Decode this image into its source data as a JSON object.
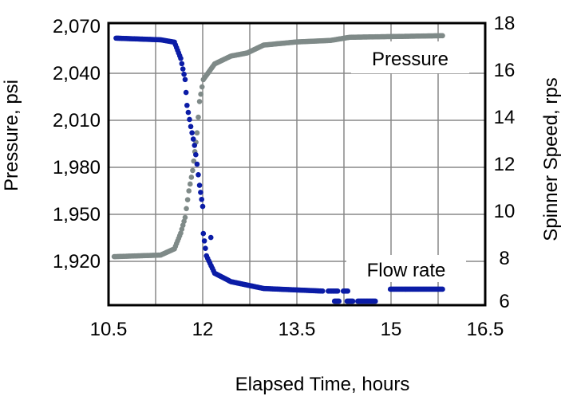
{
  "chart_data": {
    "type": "scatter",
    "title": "",
    "xlabel": "Elapsed Time, hours",
    "ylabel_left": "Pressure, psi",
    "ylabel_right": "Spinner Speed, rps",
    "xlim": [
      10.5,
      16.5
    ],
    "xticks": [
      10.5,
      12,
      13.5,
      15,
      16.5
    ],
    "xtick_labels": [
      "10.5",
      "12",
      "13.5",
      "15",
      "16.5"
    ],
    "ylim_left": [
      1892,
      2072
    ],
    "yticks_left": [
      1920,
      1950,
      1980,
      2010,
      2040,
      2070
    ],
    "ytick_labels_left": [
      "1,920",
      "1,950",
      "1,980",
      "2,010",
      "2,040",
      "2,070"
    ],
    "ylim_right": [
      6,
      18
    ],
    "yticks_right": [
      6,
      8,
      10,
      12,
      14,
      16,
      18
    ],
    "ytick_labels_right": [
      "6",
      "8",
      "10",
      "12",
      "14",
      "16",
      "18"
    ],
    "grid": true,
    "series": [
      {
        "name": "Pressure",
        "axis": "left",
        "color": "#7f8a88",
        "segments": [
          [
            [
              10.59,
              1923
            ],
            [
              11.33,
              1924
            ],
            [
              11.55,
              1928
            ],
            [
              11.65,
              1938
            ],
            [
              11.72,
              1948
            ],
            [
              11.78,
              1965
            ],
            [
              11.84,
              1978
            ],
            [
              11.91,
              2002
            ],
            [
              11.95,
              2022
            ],
            [
              12.01,
              2036
            ],
            [
              12.19,
              2046
            ],
            [
              12.45,
              2051
            ],
            [
              12.71,
              2053
            ],
            [
              12.97,
              2058
            ],
            [
              13.49,
              2060
            ],
            [
              14.04,
              2061
            ],
            [
              14.34,
              2063
            ],
            [
              15.82,
              2064
            ]
          ]
        ]
      },
      {
        "name": "Flow rate",
        "axis": "right",
        "color": "#0b1ca6",
        "segments": [
          [
            [
              10.62,
              17.36
            ],
            [
              11.33,
              17.29
            ],
            [
              11.55,
              17.19
            ],
            [
              11.65,
              16.5
            ],
            [
              11.72,
              15.6
            ],
            [
              11.75,
              14.5
            ],
            [
              11.81,
              13.6
            ],
            [
              11.87,
              12.8
            ],
            [
              11.91,
              12.0
            ],
            [
              11.95,
              11.1
            ],
            [
              12.0,
              10.2
            ],
            [
              12.01,
              9.05
            ],
            [
              12.06,
              8.1
            ],
            [
              12.19,
              7.36
            ],
            [
              12.45,
              7.0
            ],
            [
              12.97,
              6.71
            ],
            [
              13.91,
              6.6
            ]
          ],
          [
            [
              14.0,
              6.6
            ],
            [
              14.15,
              6.6
            ]
          ],
          [
            [
              14.24,
              6.6
            ],
            [
              14.31,
              6.6
            ]
          ],
          [
            [
              14.1,
              6.17
            ],
            [
              14.17,
              6.17
            ]
          ],
          [
            [
              14.3,
              6.17
            ],
            [
              14.39,
              6.17
            ]
          ],
          [
            [
              14.47,
              6.17
            ],
            [
              14.75,
              6.17
            ]
          ],
          [
            [
              14.99,
              6.68
            ],
            [
              15.82,
              6.68
            ]
          ],
          [
            [
              12.13,
              8.88
            ]
          ]
        ]
      }
    ],
    "annotations": [
      "Pressure",
      "Flow rate"
    ]
  }
}
